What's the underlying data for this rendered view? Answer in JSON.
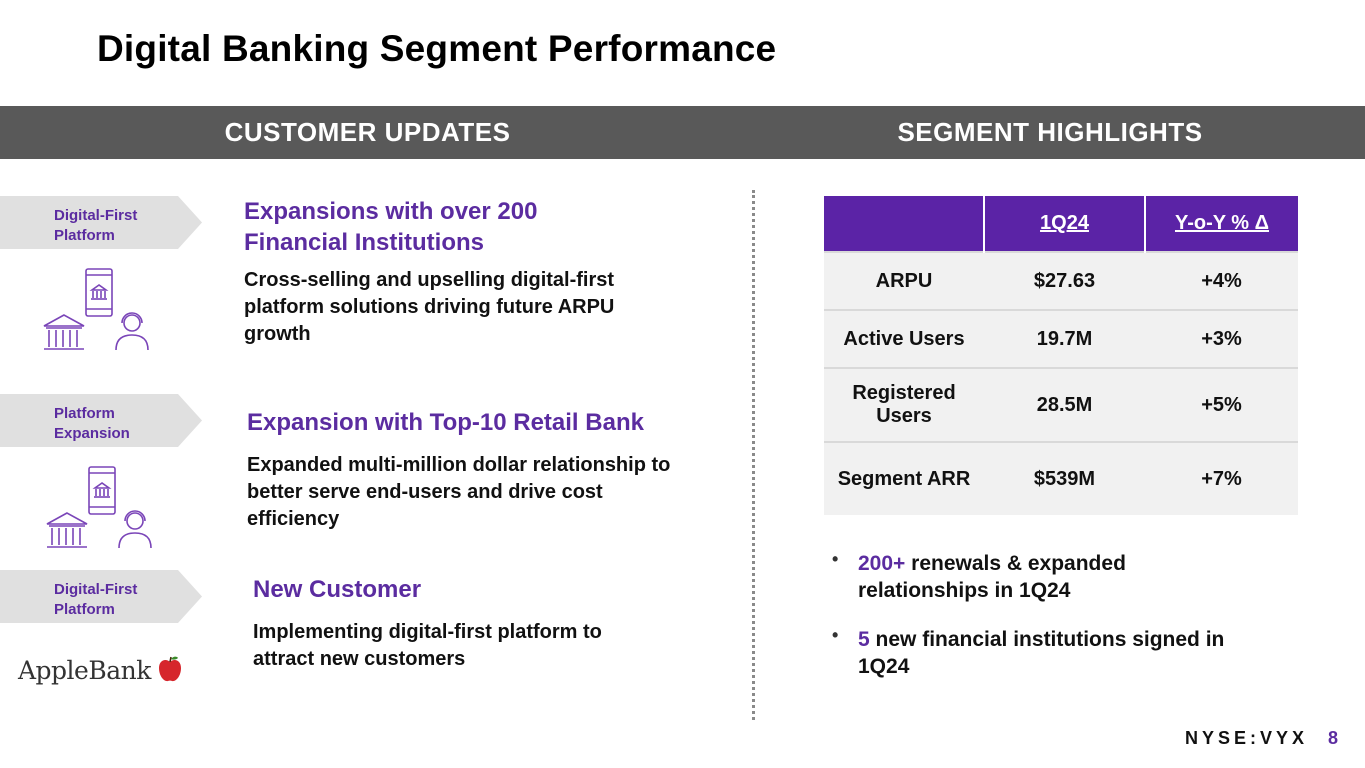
{
  "title": "Digital Banking Segment Performance",
  "band": {
    "left_label": "CUSTOMER UPDATES",
    "right_label": "SEGMENT HIGHLIGHTS"
  },
  "updates": [
    {
      "tag_line1": "Digital-First",
      "tag_line2": "Platform",
      "heading_line1": "Expansions with over 200",
      "heading_line2": "Financial Institutions",
      "body_line1": "Cross-selling and upselling digital-first",
      "body_line2": "platform solutions driving future ARPU",
      "body_line3": "growth"
    },
    {
      "tag_line1": "Platform",
      "tag_line2": "Expansion",
      "heading_line1": "Expansion with Top-10 Retail Bank",
      "body_line1": "Expanded multi-million dollar relationship to",
      "body_line2": "better serve end-users and drive cost",
      "body_line3": "efficiency"
    },
    {
      "tag_line1": "Digital-First",
      "tag_line2": "Platform",
      "heading_line1": "New Customer",
      "body_line1": "Implementing digital-first platform to",
      "body_line2": "attract new customers",
      "logo_text": "AppleBank"
    }
  ],
  "table": {
    "headers": [
      "",
      "1Q24",
      "Y-o-Y % Δ"
    ],
    "rows": [
      {
        "metric": "ARPU",
        "value": "$27.63",
        "change": "+4%"
      },
      {
        "metric": "Active Users",
        "value": "19.7M",
        "change": "+3%"
      },
      {
        "metric_line1": "Registered",
        "metric_line2": "Users",
        "value": "28.5M",
        "change": "+5%"
      },
      {
        "metric": "Segment ARR",
        "value": "$539M",
        "change": "+7%"
      }
    ]
  },
  "bullets": [
    {
      "dot": "•",
      "highlight": "200+",
      "rest_line1": " renewals & expanded",
      "rest_line2": "relationships in 1Q24"
    },
    {
      "dot": "•",
      "highlight": "5",
      "rest_line1": " new financial institutions signed in",
      "rest_line2": "1Q24"
    }
  ],
  "footer": {
    "ticker": "NYSE:VYX",
    "page": "8"
  },
  "colors": {
    "accent_purple": "#5b2ca0",
    "band_gray": "#595959",
    "table_header": "#5b23a6",
    "apple_red": "#d6262c"
  },
  "icons": [
    "phone-bank-icon",
    "bank-building-icon",
    "support-agent-icon",
    "apple-icon"
  ]
}
